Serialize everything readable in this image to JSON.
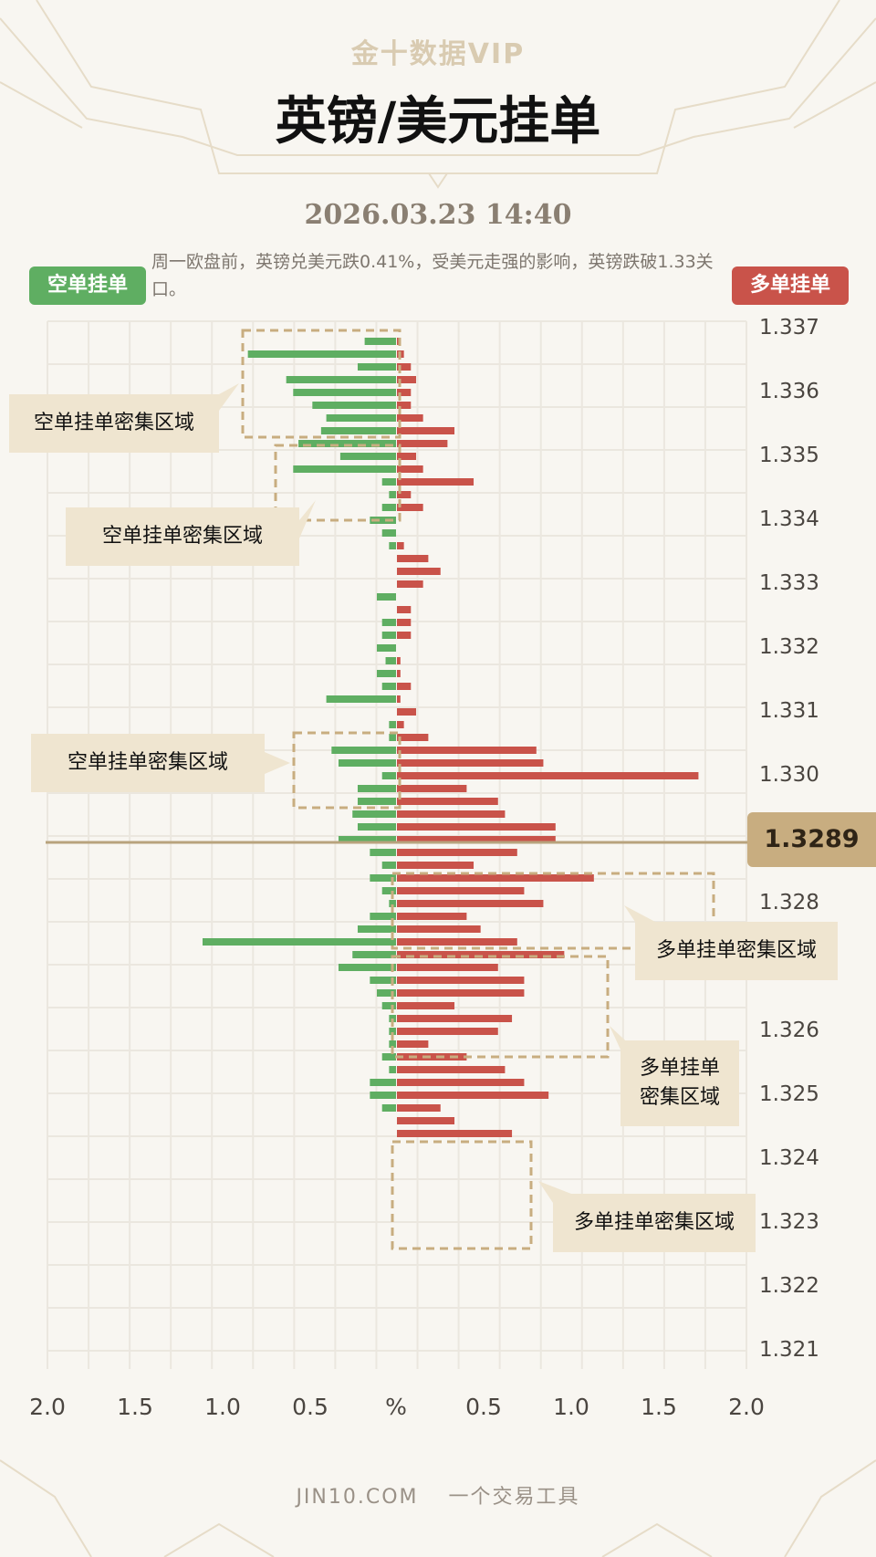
{
  "header": {
    "brand": "金十数据VIP",
    "title": "英镑/美元挂单",
    "datetime": "2026.03.23 14:40",
    "description": "周一欧盘前，英镑兑美元跌0.41%，受美元走强的影响，英镑跌破1.33关口。"
  },
  "legend": {
    "short_label": "空单挂单",
    "long_label": "多单挂单",
    "short_color": "#5fae62",
    "long_color": "#c9534a"
  },
  "current_price": "1.3289",
  "annotations": {
    "short_zone_1": "空单挂单密集区域",
    "short_zone_2": "空单挂单密集区域",
    "short_zone_3": "空单挂单密集区域",
    "long_zone_1": "多单挂单密集区域",
    "long_zone_2_line1": "多单挂单",
    "long_zone_2_line2": "密集区域",
    "long_zone_3": "多单挂单密集区域"
  },
  "footer": {
    "site": "JIN10.COM",
    "slogan": "一个交易工具"
  },
  "chart_data": {
    "type": "bar",
    "orientation": "horizontal-diverging",
    "price_ticks": [
      "1.337",
      "1.336",
      "1.335",
      "1.334",
      "1.333",
      "1.332",
      "1.331",
      "1.330",
      "1.328",
      "1.326",
      "1.325",
      "1.324",
      "1.323",
      "1.322",
      "1.321"
    ],
    "x_tick_labels": [
      "2.0",
      "1.5",
      "1.0",
      "0.5",
      "%",
      "0.5",
      "1.0",
      "1.5",
      "2.0"
    ],
    "xlim": [
      0,
      2.0
    ],
    "ylim": [
      1.3206,
      1.3372
    ],
    "price_step": 0.0002,
    "current_price": 1.3289,
    "series": [
      {
        "name": "空单挂单",
        "price_start": 1.337,
        "values": [
          0.18,
          0.85,
          0.22,
          0.63,
          0.59,
          0.48,
          0.4,
          0.43,
          0.56,
          0.32,
          0.59,
          0.08,
          0.04,
          0.08,
          0.15,
          0.08,
          0.04,
          0.0,
          0.0,
          0.0,
          0.11,
          0.0,
          0.08,
          0.08,
          0.11,
          0.06,
          0.11,
          0.08,
          0.4,
          0.0,
          0.04,
          0.04,
          0.37,
          0.33,
          0.08,
          0.22,
          0.22,
          0.25,
          0.22,
          0.33,
          0.15,
          0.08,
          0.15,
          0.08,
          0.04,
          0.15,
          0.22,
          1.11,
          0.25,
          0.33,
          0.15,
          0.11,
          0.08,
          0.04,
          0.04,
          0.04,
          0.08,
          0.04,
          0.15,
          0.15,
          0.08
        ]
      },
      {
        "name": "多单挂单",
        "price_start": 1.337,
        "values": [
          0.02,
          0.04,
          0.08,
          0.11,
          0.08,
          0.08,
          0.15,
          0.33,
          0.29,
          0.11,
          0.15,
          0.44,
          0.08,
          0.15,
          0.0,
          0.0,
          0.04,
          0.18,
          0.25,
          0.15,
          0.0,
          0.08,
          0.08,
          0.08,
          0.0,
          0.02,
          0.02,
          0.08,
          0.02,
          0.11,
          0.04,
          0.18,
          0.8,
          0.84,
          1.73,
          0.4,
          0.58,
          0.62,
          0.91,
          0.91,
          0.69,
          0.44,
          1.13,
          0.73,
          0.84,
          0.4,
          0.48,
          0.69,
          0.96,
          0.58,
          0.73,
          0.73,
          0.33,
          0.66,
          0.58,
          0.18,
          0.4,
          0.62,
          0.73,
          0.87,
          0.25,
          0.33,
          0.66
        ]
      }
    ],
    "grid": true
  }
}
